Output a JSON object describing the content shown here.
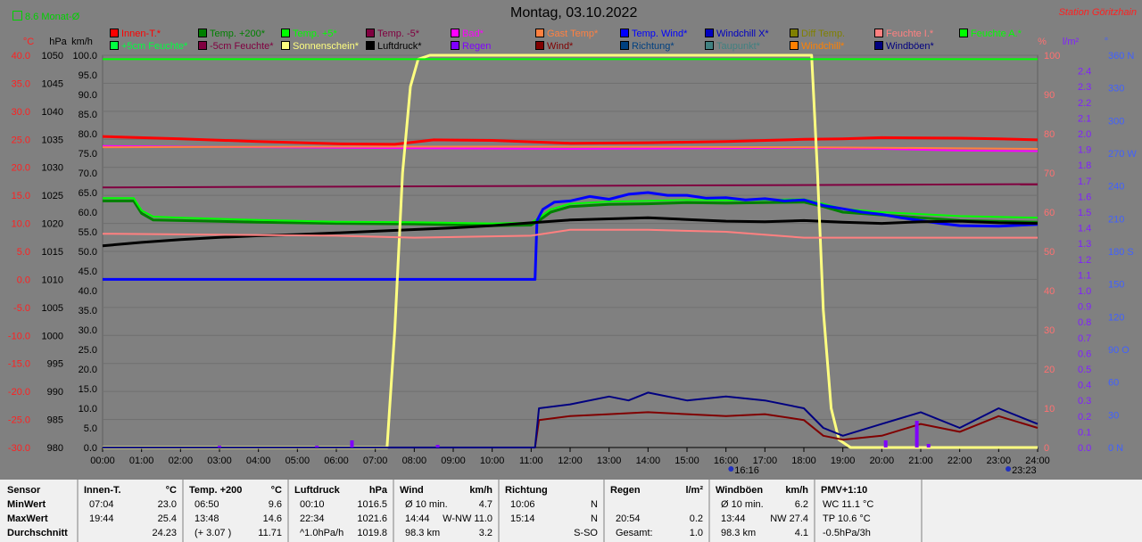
{
  "title": "Montag, 03.10.2022",
  "station": "Station Göritzhain",
  "monat_label": "8.6 Monat-Ø",
  "axes": {
    "temp": {
      "unit": "°C",
      "color": "#ff2020",
      "ticks": [
        "40.0",
        "35.0",
        "30.0",
        "25.0",
        "20.0",
        "15.0",
        "10.0",
        "5.0",
        "0.0",
        "-5.0",
        "-10.0",
        "-15.0",
        "-20.0",
        "-25.0",
        "-30.0"
      ]
    },
    "hpa": {
      "unit": "hPa",
      "color": "#000000",
      "ticks": [
        "1050",
        "1045",
        "1040",
        "1035",
        "1030",
        "1025",
        "1020",
        "1015",
        "1010",
        "1005",
        "1000",
        "995",
        "990",
        "985",
        "980"
      ]
    },
    "kmh": {
      "unit": "km/h",
      "color": "#000000",
      "ticks": [
        "100.0",
        "95.0",
        "90.0",
        "85.0",
        "80.0",
        "75.0",
        "70.0",
        "65.0",
        "60.0",
        "55.0",
        "50.0",
        "45.0",
        "40.0",
        "35.0",
        "30.0",
        "25.0",
        "20.0",
        "15.0",
        "10.0",
        "5.0",
        "0.0"
      ]
    },
    "pct": {
      "unit": "%",
      "color": "#ff7070",
      "ticks": [
        "100",
        "90",
        "80",
        "70",
        "60",
        "50",
        "40",
        "30",
        "20",
        "10",
        "0"
      ]
    },
    "lm2": {
      "unit": "l/m²",
      "color": "#8020ff",
      "ticks": [
        "2.4",
        "2.3",
        "2.2",
        "2.1",
        "2.0",
        "1.9",
        "1.8",
        "1.7",
        "1.6",
        "1.5",
        "1.4",
        "1.3",
        "1.2",
        "1.1",
        "1.0",
        "0.9",
        "0.8",
        "0.7",
        "0.6",
        "0.5",
        "0.4",
        "0.3",
        "0.2",
        "0.1",
        "0.0"
      ]
    },
    "dir": {
      "unit": "°",
      "color": "#4060ff",
      "ticks": [
        "360 N",
        "330",
        "300",
        "270 W",
        "240",
        "210",
        "180 S",
        "150",
        "120",
        "90 O",
        "60",
        "30",
        "0 N"
      ]
    }
  },
  "legend": [
    {
      "label": "Innen-T.*",
      "color": "#ff0000"
    },
    {
      "label": "Temp. +200*",
      "color": "#008000"
    },
    {
      "label": "Temp. +5*",
      "color": "#00ff00"
    },
    {
      "label": "Temp. -5*",
      "color": "#800040"
    },
    {
      "label": "Bad*",
      "color": "#ff00ff"
    },
    {
      "label": "Gast Temp*",
      "color": "#ff8040"
    },
    {
      "label": "Temp. Wind*",
      "color": "#0000ff"
    },
    {
      "label": "Windchill X*",
      "color": "#0000c0"
    },
    {
      "label": "Diff Temp.",
      "color": "#808000"
    },
    {
      "label": "Feuchte I.*",
      "color": "#ff8080"
    },
    {
      "label": "Feuchte A.*",
      "color": "#00ff00"
    },
    {
      "label": "+5cm Feuchte*",
      "color": "#00ff40"
    },
    {
      "label": "-5cm Feuchte*",
      "color": "#800040"
    },
    {
      "label": "Sonnenschein*",
      "color": "#ffff80"
    },
    {
      "label": "Luftdruck*",
      "color": "#000000"
    },
    {
      "label": "Regen",
      "color": "#8000ff"
    },
    {
      "label": "Wind*",
      "color": "#800000"
    },
    {
      "label": "Richtung*",
      "color": "#004080"
    },
    {
      "label": "Taupunkt*",
      "color": "#408080"
    },
    {
      "label": "Windchill*",
      "color": "#ff8000"
    },
    {
      "label": "Windböen*",
      "color": "#000080"
    }
  ],
  "chart_data": {
    "type": "line",
    "x_ticks": [
      "00:00",
      "01:00",
      "02:00",
      "03:00",
      "04:00",
      "05:00",
      "06:00",
      "07:00",
      "08:00",
      "09:00",
      "10:00",
      "11:00",
      "12:00",
      "13:00",
      "14:00",
      "15:00",
      "16:00",
      "17:00",
      "18:00",
      "19:00",
      "20:00",
      "21:00",
      "22:00",
      "23:00",
      "24:00"
    ],
    "sun_events": [
      "16:16",
      "23:23"
    ],
    "x_range": [
      0,
      24
    ],
    "ylim_temp": [
      -30,
      40
    ],
    "ylim_kmh": [
      0,
      100
    ],
    "series": [
      {
        "name": "Innen-T.*",
        "axis": "temp",
        "color": "#ff0000",
        "width": 3,
        "x": [
          0,
          2,
          4,
          6,
          7.5,
          8.5,
          10,
          12,
          14,
          16,
          18,
          19,
          20,
          22,
          23,
          24
        ],
        "y": [
          25.5,
          25.1,
          24.6,
          24.2,
          24.1,
          24.9,
          24.8,
          24.3,
          24.4,
          24.6,
          25.0,
          25.1,
          25.3,
          25.2,
          25.1,
          24.9
        ]
      },
      {
        "name": "Temp. +200*",
        "axis": "temp",
        "color": "#008000",
        "width": 3,
        "x": [
          0,
          0.8,
          1.0,
          1.3,
          2,
          4,
          6,
          8,
          10,
          11,
          11.2,
          11.5,
          12,
          13,
          14,
          15,
          16,
          17,
          18,
          18.5,
          19,
          20,
          22,
          24
        ],
        "y": [
          14.0,
          14.0,
          11.8,
          10.6,
          10.5,
          10.2,
          10.0,
          9.9,
          9.6,
          9.7,
          10.5,
          12.0,
          13.0,
          13.4,
          13.5,
          13.7,
          13.6,
          13.7,
          13.8,
          13.0,
          12.0,
          11.5,
          10.5,
          10.2
        ]
      },
      {
        "name": "Temp. +5*",
        "axis": "temp",
        "color": "#00ff00",
        "width": 2,
        "x": [
          0,
          0.8,
          1.0,
          1.3,
          2,
          4,
          6,
          8,
          10,
          11,
          11.2,
          11.5,
          12,
          13,
          14,
          15,
          16,
          17,
          18,
          18.5,
          19,
          20,
          22,
          24
        ],
        "y": [
          14.5,
          14.5,
          12.3,
          11.2,
          11.0,
          10.6,
          10.3,
          10.2,
          10.0,
          10.1,
          11.0,
          12.5,
          13.5,
          13.9,
          14.0,
          14.2,
          14.1,
          14.2,
          14.3,
          13.5,
          12.6,
          12.0,
          11.3,
          11.0
        ]
      },
      {
        "name": "Temp. -5*",
        "axis": "temp",
        "color": "#800040",
        "width": 2,
        "x": [
          0,
          24
        ],
        "y": [
          16.4,
          17.0
        ]
      },
      {
        "name": "Bad*",
        "axis": "temp",
        "color": "#ff00ff",
        "width": 2,
        "x": [
          0,
          4,
          8,
          12,
          16,
          18,
          20,
          22,
          24
        ],
        "y": [
          23.8,
          23.6,
          23.4,
          23.3,
          23.4,
          23.5,
          23.3,
          23.0,
          22.9
        ]
      },
      {
        "name": "Gast Temp*",
        "axis": "temp",
        "color": "#ff8040",
        "width": 2,
        "x": [
          0,
          6,
          12,
          18,
          24
        ],
        "y": [
          23.6,
          23.7,
          23.7,
          23.6,
          23.3
        ]
      },
      {
        "name": "Temp. Wind*",
        "axis": "temp",
        "color": "#0000ff",
        "width": 3,
        "x": [
          0,
          11.1,
          11.15,
          11.3,
          11.6,
          12,
          12.5,
          13,
          13.5,
          14,
          14.5,
          15,
          15.5,
          16,
          16.5,
          17,
          17.5,
          18,
          18.5,
          19,
          19.5,
          20,
          20.5,
          21,
          21.5,
          22,
          23,
          24
        ],
        "y": [
          0,
          0,
          10.5,
          12.5,
          13.8,
          14.0,
          14.8,
          14.3,
          15.2,
          15.5,
          15.0,
          15.0,
          14.5,
          14.6,
          14.2,
          14.4,
          14.0,
          14.2,
          13.2,
          12.6,
          12.0,
          11.6,
          11.0,
          10.5,
          10.0,
          9.6,
          9.5,
          9.8
        ]
      },
      {
        "name": "Luftdruck*",
        "axis": "hpa",
        "color": "#000000",
        "width": 3,
        "x": [
          0,
          1,
          2,
          3,
          4,
          5,
          6,
          7,
          8,
          9,
          10,
          11,
          12,
          13,
          14,
          15,
          16,
          17,
          18,
          19,
          20,
          21,
          22,
          23,
          24
        ],
        "y": [
          1016.0,
          1016.6,
          1017.1,
          1017.5,
          1017.8,
          1018.0,
          1018.3,
          1018.6,
          1018.9,
          1019.2,
          1019.6,
          1020.1,
          1020.6,
          1020.8,
          1021.0,
          1020.7,
          1020.4,
          1020.3,
          1020.5,
          1020.2,
          1020.0,
          1020.3,
          1020.4,
          1020.1,
          1020.0
        ]
      },
      {
        "name": "Sonnenschein*",
        "axis": "kmh",
        "color": "#ffff80",
        "width": 3,
        "x": [
          0,
          7.3,
          7.5,
          7.7,
          7.9,
          8.1,
          8.4,
          18.2,
          18.35,
          18.5,
          18.7,
          18.9,
          19.2,
          24
        ],
        "y": [
          0,
          0,
          30,
          70,
          92,
          99,
          100,
          100,
          70,
          35,
          10,
          2,
          0,
          0
        ]
      },
      {
        "name": "Feuchte I.*",
        "axis": "pct",
        "color": "#ff8080",
        "width": 2,
        "x": [
          0,
          6,
          8,
          11,
          12,
          14,
          16,
          18,
          20,
          22,
          24
        ],
        "y": [
          54.5,
          54.0,
          53.5,
          54.0,
          55.5,
          55.5,
          55.0,
          53.5,
          53.5,
          53.5,
          53.5
        ]
      },
      {
        "name": "Feuchte A.*",
        "axis": "pct",
        "color": "#00ff00",
        "width": 2,
        "x": [
          0,
          24
        ],
        "y": [
          99,
          99
        ]
      },
      {
        "name": "Wind*",
        "axis": "kmh",
        "color": "#800000",
        "width": 2,
        "x": [
          0,
          11.1,
          11.2,
          12,
          13,
          14,
          15,
          16,
          17,
          18,
          18.5,
          19,
          20,
          21,
          22,
          23,
          24
        ],
        "y": [
          0,
          0,
          7,
          8,
          8.5,
          9,
          8.5,
          8,
          8.5,
          7,
          3,
          2,
          3,
          6,
          4,
          8,
          5
        ]
      },
      {
        "name": "Windböen*",
        "axis": "kmh",
        "color": "#000080",
        "width": 2,
        "x": [
          0,
          11.1,
          11.2,
          12,
          13,
          13.5,
          14,
          15,
          16,
          17,
          18,
          18.5,
          19,
          20,
          21,
          22,
          23,
          24
        ],
        "y": [
          0,
          0,
          10,
          11,
          13,
          12,
          14,
          12,
          13,
          12,
          10,
          5,
          3,
          6,
          9,
          5,
          10,
          6
        ]
      }
    ]
  },
  "stats": {
    "sensor": {
      "head": "Sensor",
      "rows": [
        "MinWert",
        "MaxWert",
        "Durchschnitt"
      ]
    },
    "innen": {
      "head": "Innen-T.",
      "unit": "°C",
      "rows": [
        [
          "07:04",
          "23.0"
        ],
        [
          "19:44",
          "25.4"
        ],
        [
          "",
          "24.23"
        ]
      ]
    },
    "temp": {
      "head": "Temp. +200",
      "unit": "°C",
      "rows": [
        [
          "06:50",
          "9.6"
        ],
        [
          "13:48",
          "14.6"
        ],
        [
          "(+ 3.07 )",
          "11.71"
        ]
      ]
    },
    "luft": {
      "head": "Luftdruck",
      "unit": "hPa",
      "rows": [
        [
          "00:10",
          "1016.5"
        ],
        [
          "22:34",
          "1021.6"
        ],
        [
          "^1.0hPa/h",
          "1019.8"
        ]
      ]
    },
    "wind": {
      "head": "Wind",
      "unit": "km/h",
      "rows": [
        [
          "Ø 10 min.",
          "4.7"
        ],
        [
          "14:44",
          "W-NW 11.0"
        ],
        [
          "98.3 km",
          "3.2"
        ]
      ]
    },
    "richtung": {
      "head": "Richtung",
      "rows": [
        [
          "10:06",
          "N"
        ],
        [
          "15:14",
          "N"
        ],
        [
          "",
          "S-SO"
        ]
      ]
    },
    "regen": {
      "head": "Regen",
      "unit": "l/m²",
      "rows": [
        [
          "",
          ""
        ],
        [
          "20:54",
          "0.2"
        ],
        [
          "Gesamt:",
          "1.0"
        ]
      ]
    },
    "boeen": {
      "head": "Windböen",
      "unit": "km/h",
      "rows": [
        [
          "Ø 10 min.",
          "6.2"
        ],
        [
          "13:44",
          "NW 27.4"
        ],
        [
          "98.3 km",
          "4.1"
        ]
      ]
    },
    "pmv": {
      "head": "PMV+1:10",
      "rows": [
        "WC 11.1 °C",
        "TP 10.6 °C",
        "-0.5hPa/3h"
      ]
    }
  }
}
